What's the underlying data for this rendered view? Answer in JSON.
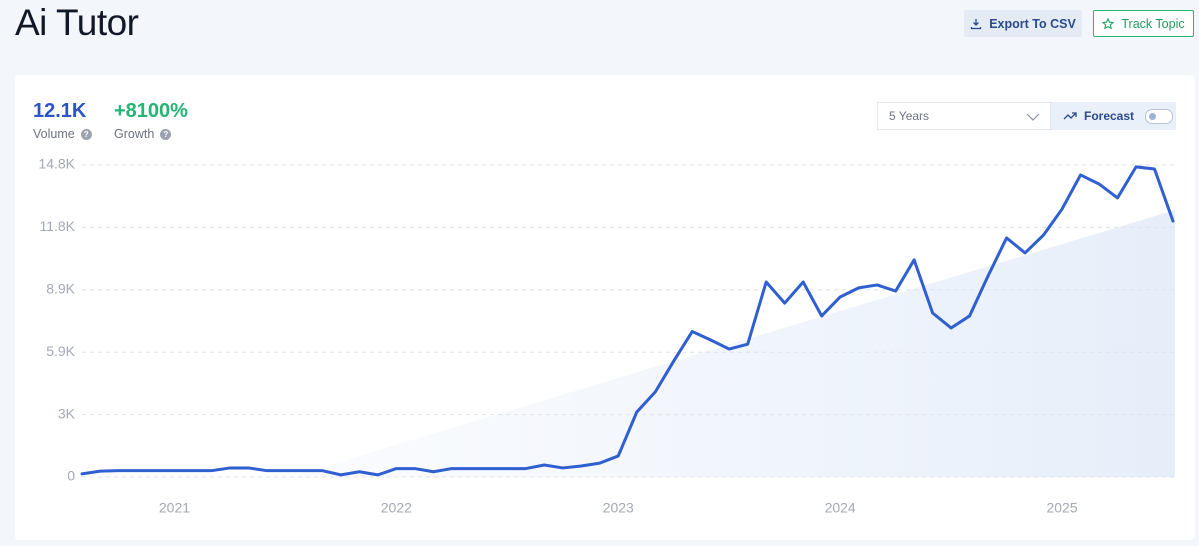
{
  "header": {
    "title": "Ai Tutor",
    "export": "Export To CSV",
    "track": "Track Topic"
  },
  "stats": {
    "volume": "12.1K",
    "volume_label": "Volume",
    "growth": "+8100%",
    "growth_label": "Growth"
  },
  "controls": {
    "range": "5 Years",
    "forecast": "Forecast"
  },
  "chart_data": {
    "type": "line",
    "color": "#2f5fd0",
    "grid": true,
    "categories": [
      null,
      null,
      null,
      null,
      null,
      "2021",
      null,
      null,
      null,
      null,
      null,
      null,
      null,
      null,
      null,
      null,
      null,
      "2022",
      null,
      null,
      null,
      null,
      null,
      null,
      null,
      null,
      null,
      null,
      null,
      "2023",
      null,
      null,
      null,
      null,
      null,
      null,
      null,
      null,
      null,
      null,
      null,
      "2024",
      null,
      null,
      null,
      null,
      null,
      null,
      null,
      null,
      null,
      null,
      null,
      "2025",
      null,
      null,
      null,
      null,
      null,
      null
    ],
    "values": [
      150,
      280,
      300,
      300,
      300,
      300,
      300,
      300,
      430,
      430,
      300,
      300,
      300,
      300,
      100,
      250,
      100,
      400,
      400,
      250,
      400,
      400,
      400,
      400,
      400,
      570,
      430,
      520,
      660,
      1000,
      3080,
      4030,
      5500,
      6900,
      6500,
      6070,
      6300,
      9250,
      8250,
      9250,
      7640,
      8540,
      8970,
      9110,
      8820,
      10300,
      7780,
      7070,
      7640,
      9540,
      11340,
      10630,
      11480,
      12710,
      14330,
      13900,
      13240,
      14710,
      14610,
      12140
    ],
    "ylim": [
      0,
      14800
    ],
    "yticks": [
      0,
      {
        "value": 2960,
        "label": "3K"
      },
      {
        "value": 5920,
        "label": "5.9K"
      },
      {
        "value": 8880,
        "label": "8.9K"
      },
      {
        "value": 11840,
        "label": "11.8K"
      },
      {
        "value": 14800,
        "label": "14.8K"
      }
    ]
  }
}
